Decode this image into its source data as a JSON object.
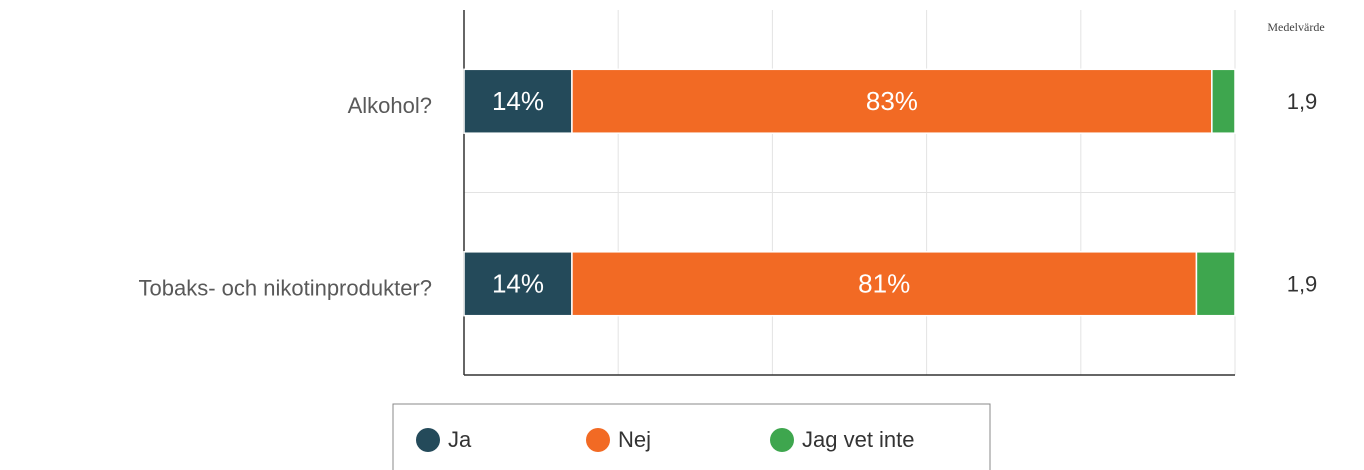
{
  "chart_data": {
    "type": "stacked_barh",
    "categories": [
      "Alkohol?",
      "Tobaks- och nikotinprodukter?"
    ],
    "series": [
      {
        "name": "Ja",
        "color": "#244a5a",
        "values": [
          14,
          14
        ],
        "value_labels": [
          "14%",
          "14%"
        ]
      },
      {
        "name": "Nej",
        "color": "#f26a24",
        "values": [
          83,
          81
        ],
        "value_labels": [
          "83%",
          "81%"
        ]
      },
      {
        "name": "Jag vet inte",
        "color": "#3ea64e",
        "values": [
          3,
          5
        ]
      }
    ],
    "xlim": [
      0,
      100
    ],
    "xticks": [
      0,
      20,
      40,
      60,
      80,
      100
    ],
    "grid": true,
    "mean_title": "Medelvärde",
    "means": [
      "1,9",
      "1,9"
    ]
  }
}
